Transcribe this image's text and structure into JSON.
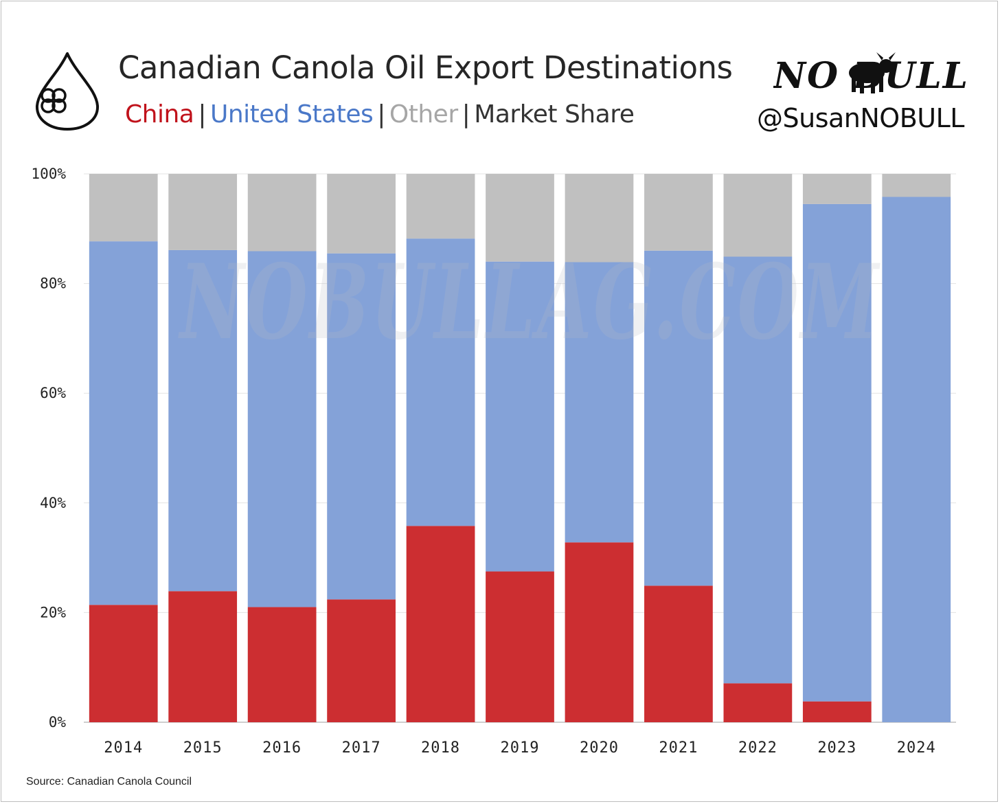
{
  "header": {
    "title": "Canadian Canola Oil Export Destinations",
    "subtitle": {
      "china": "China",
      "us": "United States",
      "other": "Other",
      "sep": "|",
      "rest": "Market Share"
    },
    "brand": "NO BULL",
    "handle": "@SusanNOBULL",
    "watermark": "NOBULLAG.COM"
  },
  "source": "Source: Canadian Canola Council",
  "colors": {
    "china": "#cc2e31",
    "united_states": "#84a2d8",
    "other": "#c0c0c0",
    "china_text": "#c0121b",
    "us_text": "#4a78c8",
    "other_text": "#a6a6a6"
  },
  "chart_data": {
    "type": "bar",
    "stacked": true,
    "categories": [
      "2014",
      "2015",
      "2016",
      "2017",
      "2018",
      "2019",
      "2020",
      "2021",
      "2022",
      "2023",
      "2024"
    ],
    "series": [
      {
        "name": "China",
        "values": [
          21.4,
          23.9,
          21.0,
          22.4,
          35.8,
          27.5,
          32.8,
          24.9,
          7.1,
          3.8,
          0.0
        ]
      },
      {
        "name": "United States",
        "values": [
          66.3,
          62.2,
          64.9,
          63.1,
          52.4,
          56.5,
          51.1,
          61.1,
          77.8,
          90.7,
          95.8
        ]
      },
      {
        "name": "Other",
        "values": [
          12.3,
          13.9,
          14.1,
          14.5,
          11.8,
          16.0,
          16.1,
          14.0,
          15.1,
          5.5,
          4.2
        ]
      }
    ],
    "y_ticks": [
      "0%",
      "20%",
      "40%",
      "60%",
      "80%",
      "100%"
    ],
    "ylim": [
      0,
      100
    ],
    "grid": true
  }
}
